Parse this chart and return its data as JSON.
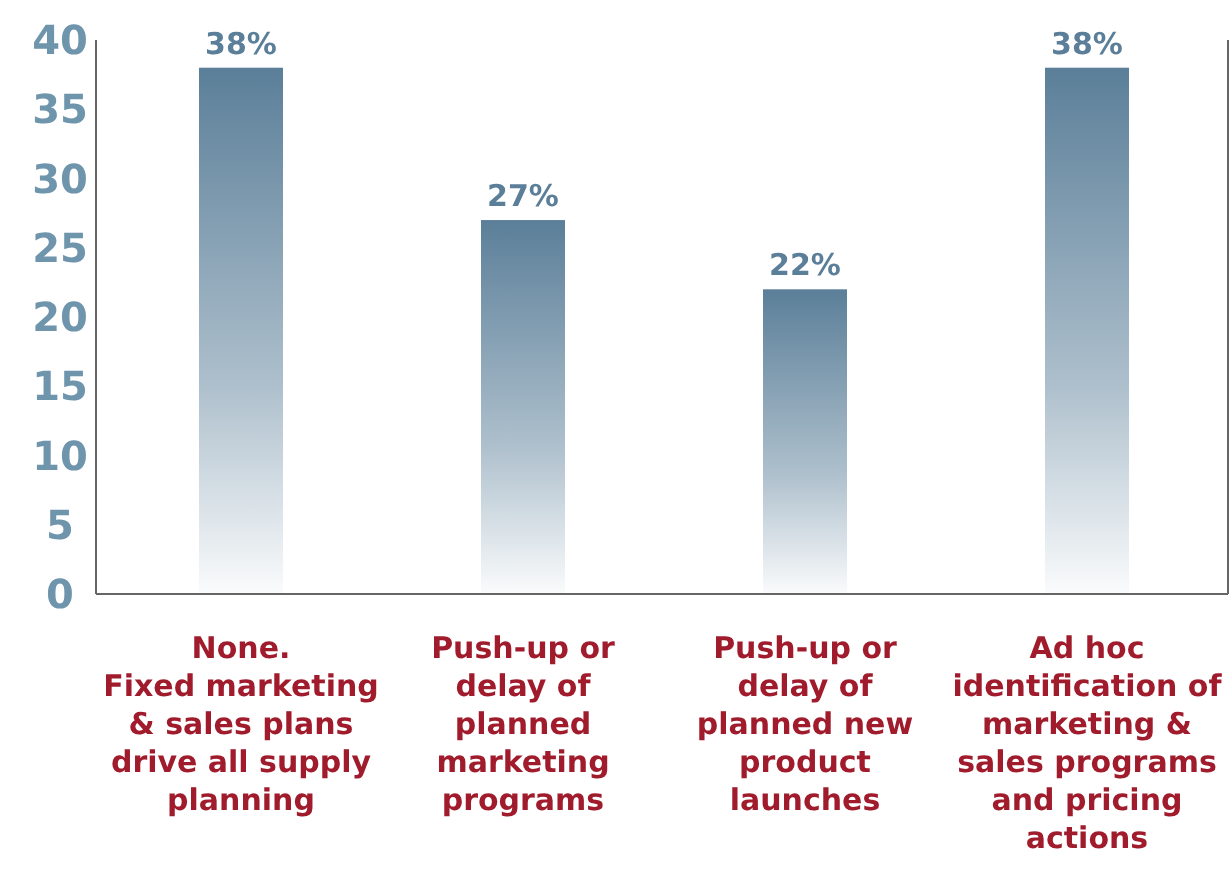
{
  "chart_data": {
    "type": "bar",
    "categories": [
      "None.\nFixed marketing\n& sales plans\ndrive all supply\nplanning",
      "Push-up or\ndelay of\nplanned\nmarketing\nprograms",
      "Push-up or\ndelay of\nplanned new\nproduct\nlaunches",
      "Ad hoc\nidentification of\nmarketing &\nsales programs\nand pricing\nactions"
    ],
    "values": [
      38,
      27,
      22,
      38
    ],
    "value_labels": [
      "38%",
      "27%",
      "22%",
      "38%"
    ],
    "color": "#5b7f99",
    "ylim": [
      0,
      40
    ],
    "yticks": [
      0,
      5,
      10,
      15,
      20,
      25,
      30,
      35,
      40
    ],
    "grid": false
  }
}
